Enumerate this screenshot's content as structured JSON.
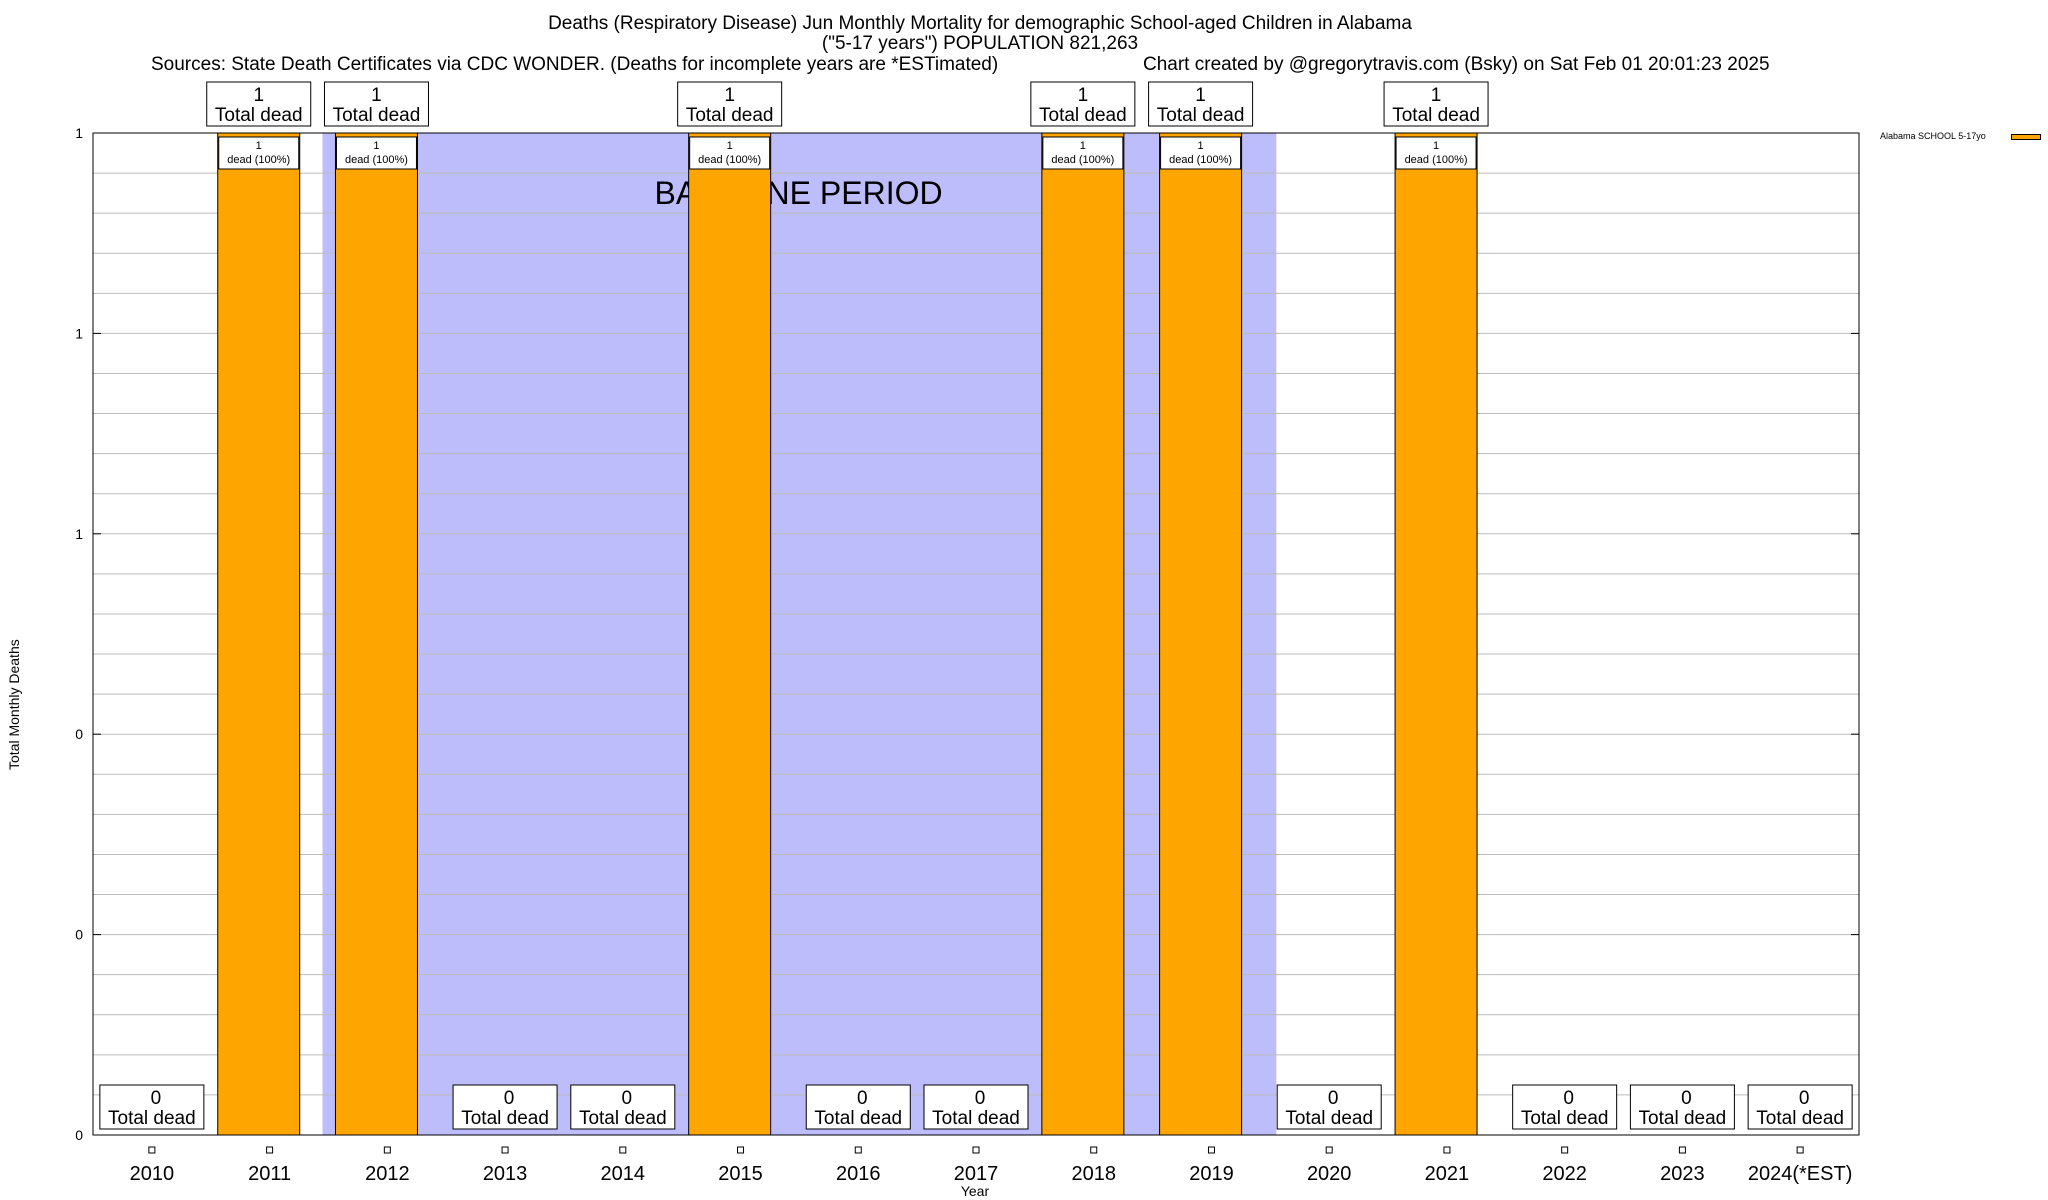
{
  "header": {
    "title_line1": "Deaths (Respiratory Disease) Jun Monthly Mortality for demographic School-aged Children in Alabama",
    "title_line2": "(\"5-17 years\") POPULATION 821,263",
    "sources": "Sources: State Death Certificates via CDC WONDER. (Deaths for incomplete years are *ESTimated)",
    "credit": "Chart created by @gregorytravis.com (Bsky) on Sat Feb 01 20:01:23 2025"
  },
  "colors": {
    "bar": "#FFA500",
    "baseline": "#BDBDFB",
    "grid": "#BBBBBB"
  },
  "chart_data": {
    "type": "bar",
    "title": "Deaths (Respiratory Disease) Jun Monthly Mortality for demographic School-aged Children in Alabama",
    "xlabel": "Year",
    "ylabel": "Total Monthly Deaths",
    "categories": [
      "2010",
      "2011",
      "2012",
      "2013",
      "2014",
      "2015",
      "2016",
      "2017",
      "2018",
      "2019",
      "2020",
      "2021",
      "2022",
      "2023",
      "2024(*EST)"
    ],
    "series": [
      {
        "name": "Alabama SCHOOL 5-17yo",
        "values": [
          0,
          1,
          1,
          0,
          0,
          1,
          0,
          0,
          1,
          1,
          0,
          1,
          0,
          0,
          0
        ]
      }
    ],
    "ylim": [
      0,
      1
    ],
    "ytick_values": [
      0,
      0.2,
      0.4,
      0.6,
      0.8,
      1.0
    ],
    "ytick_labels": [
      "0",
      "0",
      "0",
      "1",
      "1",
      "1"
    ],
    "total_label_suffix": "Total dead",
    "bar_inner_suffix": "dead (100%)",
    "baseline_period": {
      "start": "2012",
      "end": "2019",
      "label": "BASELINE PERIOD"
    },
    "legend": "top-right",
    "grid": true
  }
}
